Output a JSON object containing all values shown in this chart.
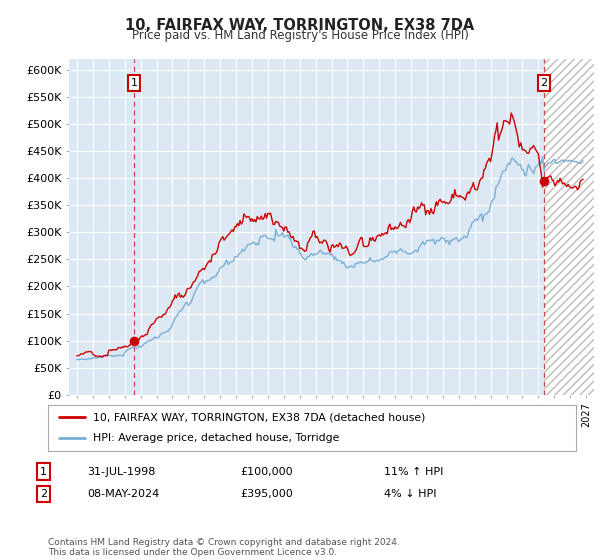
{
  "title": "10, FAIRFAX WAY, TORRINGTON, EX38 7DA",
  "subtitle": "Price paid vs. HM Land Registry's House Price Index (HPI)",
  "legend_line1": "10, FAIRFAX WAY, TORRINGTON, EX38 7DA (detached house)",
  "legend_line2": "HPI: Average price, detached house, Torridge",
  "sale1_date": "31-JUL-1998",
  "sale1_price": "£100,000",
  "sale1_hpi": "11% ↑ HPI",
  "sale2_date": "08-MAY-2024",
  "sale2_price": "£395,000",
  "sale2_hpi": "4% ↓ HPI",
  "footnote": "Contains HM Land Registry data © Crown copyright and database right 2024.\nThis data is licensed under the Open Government Licence v3.0.",
  "sale_color": "#cc0000",
  "hpi_color": "#7bafd4",
  "plot_bg": "#dce9f5",
  "grid_color": "#ffffff",
  "ylim": [
    0,
    620000
  ],
  "yticks": [
    0,
    50000,
    100000,
    150000,
    200000,
    250000,
    300000,
    350000,
    400000,
    450000,
    500000,
    550000,
    600000
  ],
  "ytick_labels": [
    "£0",
    "£50K",
    "£100K",
    "£150K",
    "£200K",
    "£250K",
    "£300K",
    "£350K",
    "£400K",
    "£450K",
    "£500K",
    "£550K",
    "£600K"
  ],
  "sale1_x": 1998.58,
  "sale1_y": 100000,
  "sale2_x": 2024.36,
  "sale2_y": 395000,
  "xlim_left": 1994.5,
  "xlim_right": 2027.5,
  "future_start": 2024.36
}
